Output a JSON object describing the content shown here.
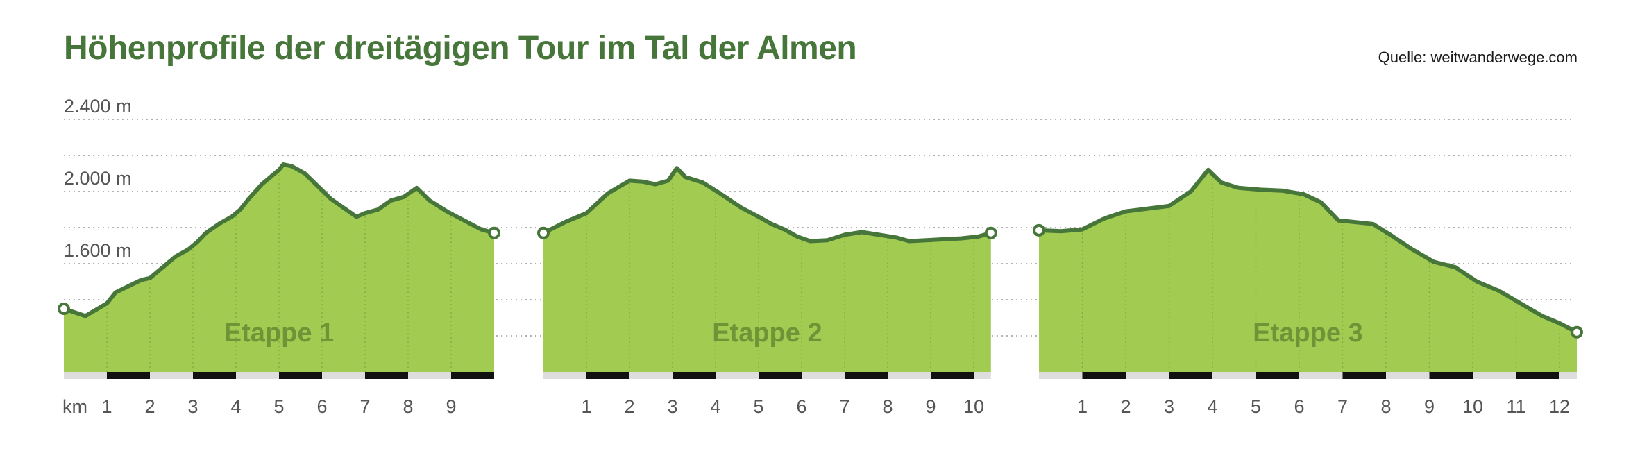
{
  "title": "Höhenprofile der dreitägigen Tour im Tal der Almen",
  "source": "Quelle: weitwanderwege.com",
  "colors": {
    "title": "#47763a",
    "fill": "#a2cb52",
    "line": "#47763a",
    "stage_label": "#6e9438",
    "grid": "#9a9a9a",
    "tick_text": "#555555",
    "scale_dark": "#111111",
    "scale_light": "#dddddd"
  },
  "chart_data": {
    "type": "area",
    "y_unit": "m",
    "x_unit_label": "km",
    "ylim": [
      1000,
      2500
    ],
    "y_ticks": [
      {
        "value": 2400,
        "label": "2.400 m"
      },
      {
        "value": 2000,
        "label": "2.000 m"
      },
      {
        "value": 1600,
        "label": "1.600 m"
      }
    ],
    "y_gridlines": [
      1200,
      1400,
      1600,
      1800,
      2000,
      2200,
      2400
    ],
    "grid": true,
    "stages": [
      {
        "label": "Etappe 1",
        "distance_km": 10,
        "x_tick_labels": [
          "1",
          "2",
          "3",
          "4",
          "5",
          "6",
          "7",
          "8",
          "9"
        ],
        "profile": [
          [
            0,
            1350
          ],
          [
            0.5,
            1310
          ],
          [
            1,
            1380
          ],
          [
            1.2,
            1440
          ],
          [
            1.5,
            1475
          ],
          [
            1.8,
            1510
          ],
          [
            2,
            1520
          ],
          [
            2.3,
            1580
          ],
          [
            2.6,
            1640
          ],
          [
            2.9,
            1680
          ],
          [
            3.1,
            1720
          ],
          [
            3.3,
            1770
          ],
          [
            3.6,
            1820
          ],
          [
            3.9,
            1860
          ],
          [
            4.1,
            1900
          ],
          [
            4.3,
            1960
          ],
          [
            4.6,
            2040
          ],
          [
            4.8,
            2080
          ],
          [
            5.0,
            2120
          ],
          [
            5.1,
            2150
          ],
          [
            5.3,
            2140
          ],
          [
            5.6,
            2100
          ],
          [
            5.9,
            2030
          ],
          [
            6.2,
            1960
          ],
          [
            6.5,
            1910
          ],
          [
            6.8,
            1860
          ],
          [
            7.0,
            1880
          ],
          [
            7.3,
            1900
          ],
          [
            7.6,
            1950
          ],
          [
            7.9,
            1970
          ],
          [
            8.2,
            2020
          ],
          [
            8.5,
            1950
          ],
          [
            8.9,
            1890
          ],
          [
            9.3,
            1840
          ],
          [
            9.7,
            1790
          ],
          [
            10,
            1770
          ]
        ]
      },
      {
        "label": "Etappe 2",
        "distance_km": 10.4,
        "x_tick_labels": [
          "1",
          "2",
          "3",
          "4",
          "5",
          "6",
          "7",
          "8",
          "9",
          "10"
        ],
        "profile": [
          [
            0,
            1770
          ],
          [
            0.5,
            1830
          ],
          [
            1,
            1880
          ],
          [
            1.5,
            1990
          ],
          [
            2,
            2060
          ],
          [
            2.3,
            2055
          ],
          [
            2.6,
            2040
          ],
          [
            2.9,
            2060
          ],
          [
            3.1,
            2130
          ],
          [
            3.3,
            2080
          ],
          [
            3.7,
            2050
          ],
          [
            4.1,
            1990
          ],
          [
            4.6,
            1910
          ],
          [
            5.0,
            1860
          ],
          [
            5.3,
            1820
          ],
          [
            5.6,
            1790
          ],
          [
            5.9,
            1750
          ],
          [
            6.2,
            1725
          ],
          [
            6.6,
            1730
          ],
          [
            7.0,
            1760
          ],
          [
            7.4,
            1775
          ],
          [
            7.8,
            1760
          ],
          [
            8.2,
            1745
          ],
          [
            8.5,
            1725
          ],
          [
            8.9,
            1730
          ],
          [
            9.3,
            1735
          ],
          [
            9.7,
            1740
          ],
          [
            10.1,
            1750
          ],
          [
            10.4,
            1770
          ]
        ]
      },
      {
        "label": "Etappe 3",
        "distance_km": 12.4,
        "x_tick_labels": [
          "1",
          "2",
          "3",
          "4",
          "5",
          "6",
          "7",
          "8",
          "9",
          "10",
          "11",
          "12"
        ],
        "profile": [
          [
            0,
            1785
          ],
          [
            0.5,
            1780
          ],
          [
            1,
            1790
          ],
          [
            1.5,
            1850
          ],
          [
            2,
            1890
          ],
          [
            2.5,
            1905
          ],
          [
            3.0,
            1920
          ],
          [
            3.5,
            2000
          ],
          [
            3.9,
            2120
          ],
          [
            4.2,
            2050
          ],
          [
            4.6,
            2020
          ],
          [
            5.1,
            2010
          ],
          [
            5.6,
            2005
          ],
          [
            6.1,
            1985
          ],
          [
            6.5,
            1940
          ],
          [
            6.9,
            1840
          ],
          [
            7.3,
            1830
          ],
          [
            7.7,
            1820
          ],
          [
            8.1,
            1760
          ],
          [
            8.6,
            1680
          ],
          [
            9.1,
            1610
          ],
          [
            9.6,
            1580
          ],
          [
            10.1,
            1500
          ],
          [
            10.6,
            1450
          ],
          [
            11.1,
            1380
          ],
          [
            11.6,
            1310
          ],
          [
            12.0,
            1270
          ],
          [
            12.4,
            1220
          ]
        ]
      }
    ]
  }
}
